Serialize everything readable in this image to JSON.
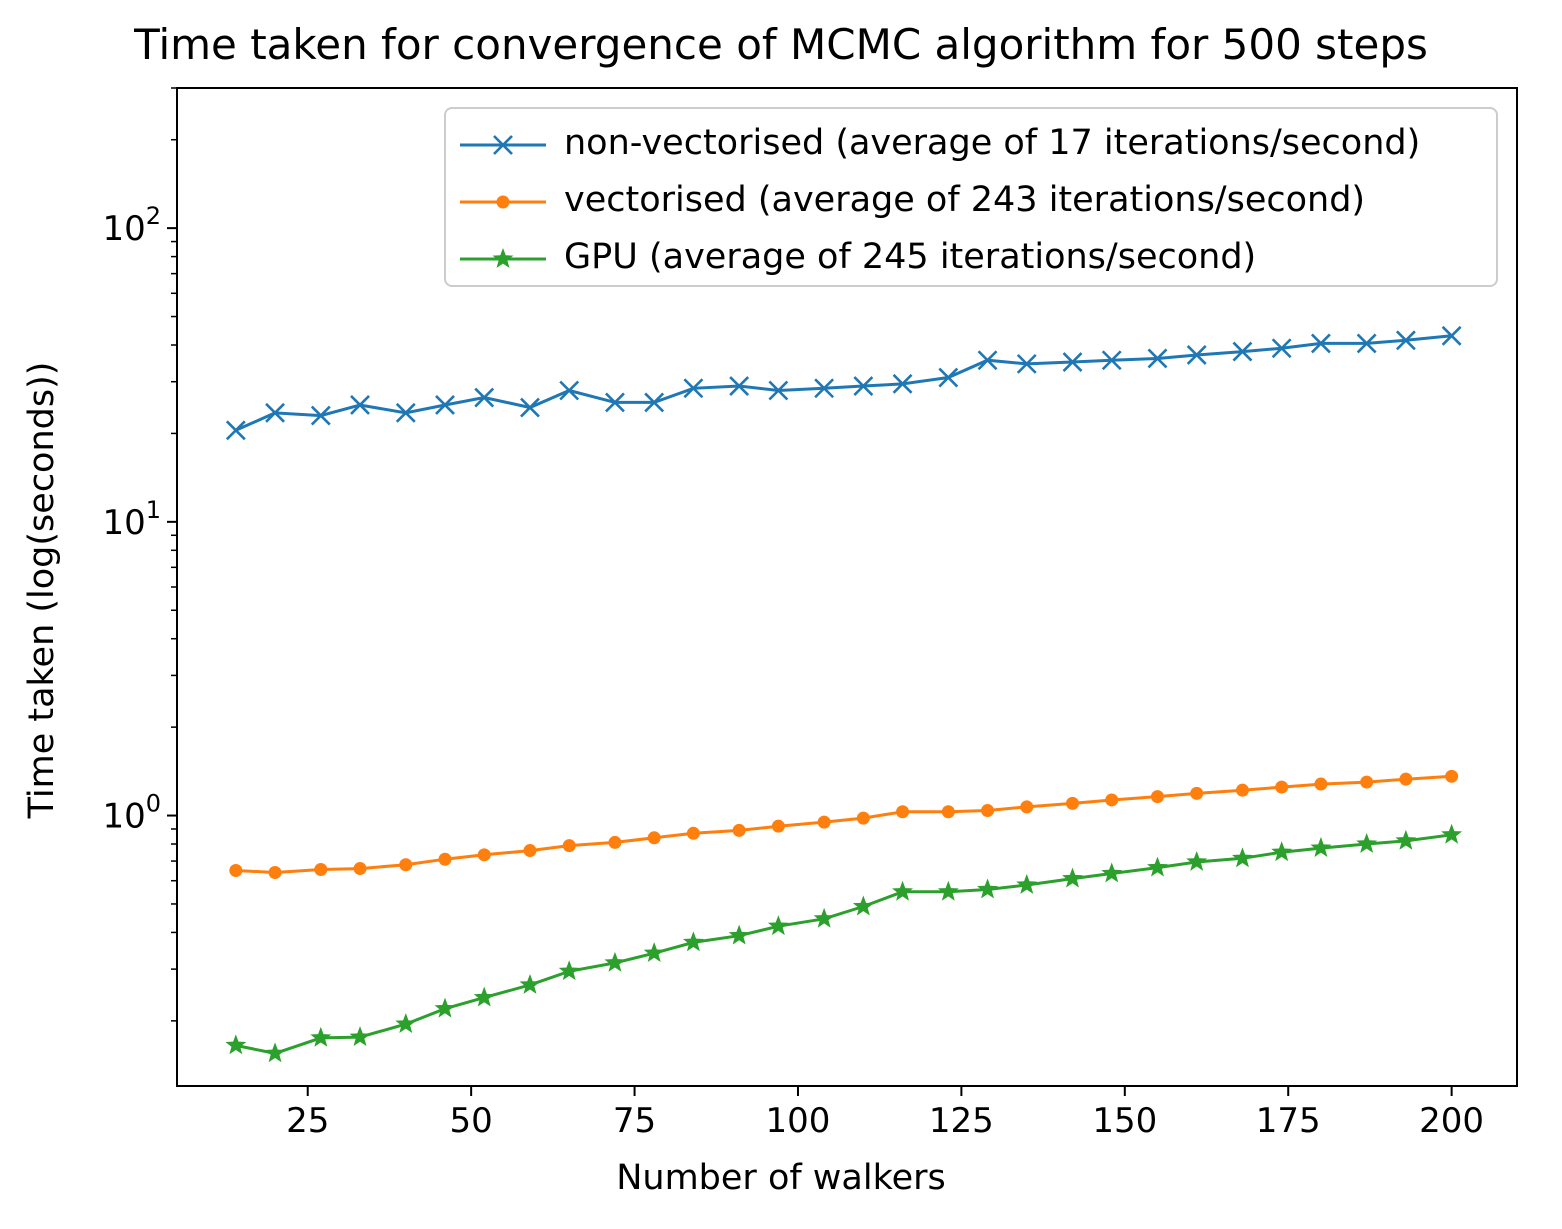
{
  "chart_data": {
    "type": "line",
    "title": "Time taken for convergence of MCMC algorithm for 500 steps",
    "xlabel": "Number of walkers",
    "ylabel": "Time taken (log(seconds))",
    "yscale": "log",
    "xlim": [
      5,
      210
    ],
    "ylim": [
      0.12,
      300
    ],
    "x_ticks": [
      25,
      50,
      75,
      100,
      125,
      150,
      175,
      200
    ],
    "y_ticks": [
      1,
      10,
      100
    ],
    "y_tick_labels": [
      {
        "base": "10",
        "exp": "0"
      },
      {
        "base": "10",
        "exp": "1"
      },
      {
        "base": "10",
        "exp": "2"
      }
    ],
    "grid": false,
    "legend_position": "top-right",
    "x": [
      14,
      20,
      27,
      33,
      40,
      46,
      52,
      59,
      65,
      72,
      78,
      84,
      91,
      97,
      104,
      110,
      116,
      123,
      129,
      135,
      142,
      148,
      155,
      161,
      168,
      174,
      180,
      187,
      193,
      200
    ],
    "series": [
      {
        "name": "non-vectorised (average of 17 iterations/second)",
        "color": "#1f77b4",
        "marker": "x",
        "values": [
          20.5,
          23.5,
          23.0,
          25.0,
          23.5,
          25.0,
          26.5,
          24.5,
          28.0,
          25.5,
          25.5,
          28.5,
          29.0,
          28.0,
          28.5,
          29.0,
          29.5,
          31.0,
          35.5,
          34.5,
          35.0,
          35.5,
          36.0,
          37.0,
          38.0,
          39.0,
          40.5,
          40.5,
          41.5,
          43.0
        ]
      },
      {
        "name": "vectorised (average of 243 iterations/second)",
        "color": "#ff7f0e",
        "marker": "o",
        "values": [
          0.65,
          0.64,
          0.655,
          0.66,
          0.68,
          0.71,
          0.735,
          0.76,
          0.79,
          0.81,
          0.84,
          0.87,
          0.89,
          0.92,
          0.95,
          0.98,
          1.03,
          1.03,
          1.04,
          1.07,
          1.1,
          1.13,
          1.16,
          1.19,
          1.22,
          1.25,
          1.28,
          1.3,
          1.33,
          1.36
        ]
      },
      {
        "name": "GPU (average of 245 iterations/second)",
        "color": "#2ca02c",
        "marker": "*",
        "values": [
          0.165,
          0.155,
          0.175,
          0.176,
          0.195,
          0.22,
          0.24,
          0.265,
          0.295,
          0.315,
          0.34,
          0.37,
          0.39,
          0.42,
          0.445,
          0.49,
          0.55,
          0.55,
          0.56,
          0.58,
          0.61,
          0.635,
          0.665,
          0.695,
          0.715,
          0.75,
          0.775,
          0.8,
          0.82,
          0.86
        ]
      }
    ]
  }
}
